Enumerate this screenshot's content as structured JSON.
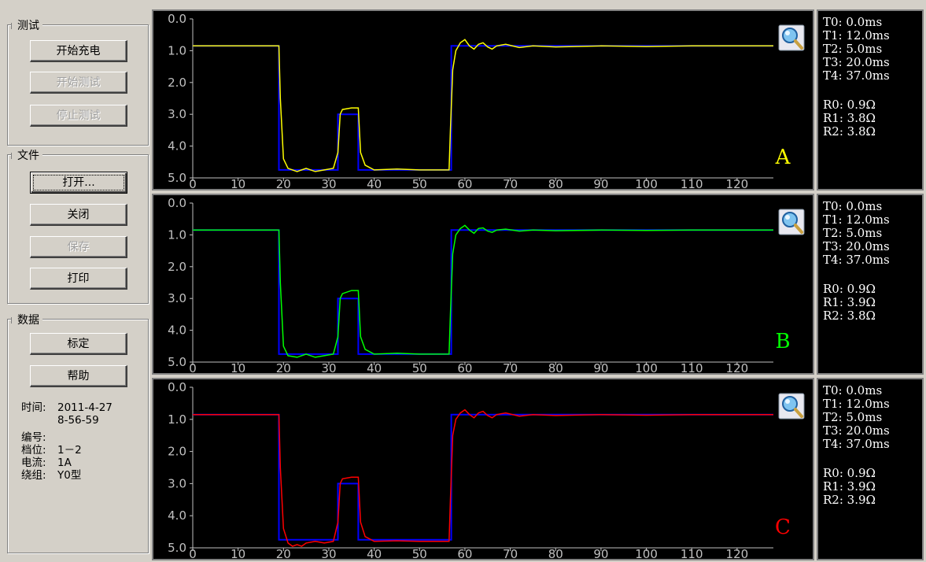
{
  "sidebar": {
    "test_group": {
      "title": "测试",
      "buttons": [
        {
          "label": "开始充电",
          "enabled": true
        },
        {
          "label": "开始测试",
          "enabled": false
        },
        {
          "label": "停止测试",
          "enabled": false
        }
      ]
    },
    "file_group": {
      "title": "文件",
      "buttons": [
        {
          "label": "打开...",
          "enabled": true
        },
        {
          "label": "关闭",
          "enabled": true
        },
        {
          "label": "保存",
          "enabled": false
        },
        {
          "label": "打印",
          "enabled": true
        }
      ]
    },
    "data_group": {
      "title": "数据",
      "buttons": [
        {
          "label": "标定",
          "enabled": true
        },
        {
          "label": "帮助",
          "enabled": true
        }
      ],
      "info": {
        "time_label": "时间:",
        "time_date": "2011-4-27",
        "time_clock": "8-56-59",
        "number_label": "编号:",
        "number_value": "",
        "tap_label": "档位:",
        "tap_value": "1－2",
        "current_label": "电流:",
        "current_value": "1A",
        "winding_label": "绕组:",
        "winding_value": "Y0型"
      }
    }
  },
  "channels": [
    {
      "id": "A",
      "label": "A",
      "color": "#ffff00",
      "params": {
        "T0": "T0: 0.0ms",
        "T1": "T1: 12.0ms",
        "T2": "T2: 5.0ms",
        "T3": "T3: 20.0ms",
        "T4": "T4: 37.0ms",
        "R0": "R0: 0.9Ω",
        "R1": "R1: 3.8Ω",
        "R2": "R2: 3.8Ω"
      }
    },
    {
      "id": "B",
      "label": "B",
      "color": "#00ff00",
      "params": {
        "T0": "T0: 0.0ms",
        "T1": "T1: 12.0ms",
        "T2": "T2: 5.0ms",
        "T3": "T3: 20.0ms",
        "T4": "T4: 37.0ms",
        "R0": "R0: 0.9Ω",
        "R1": "R1: 3.9Ω",
        "R2": "R2: 3.8Ω"
      }
    },
    {
      "id": "C",
      "label": "C",
      "color": "#ff0000",
      "params": {
        "T0": "T0: 0.0ms",
        "T1": "T1: 12.0ms",
        "T2": "T2: 5.0ms",
        "T3": "T3: 20.0ms",
        "T4": "T4: 37.0ms",
        "R0": "R0: 0.9Ω",
        "R1": "R1: 3.9Ω",
        "R2": "R2: 3.9Ω"
      }
    }
  ],
  "zoom_icon": "magnifier-icon",
  "chart_data": {
    "type": "line",
    "x_ticks": [
      "0",
      "10",
      "20",
      "30",
      "40",
      "50",
      "60",
      "70",
      "80",
      "90",
      "100",
      "110",
      "120"
    ],
    "y_ticks": [
      "0.0",
      "1.0",
      "2.0",
      "3.0",
      "4.0",
      "5.0"
    ],
    "xlim": [
      0,
      128
    ],
    "ylim": [
      0,
      5
    ],
    "y_inverted": true,
    "reference_color": "#0000ff",
    "reference": {
      "x": [
        0,
        19,
        19,
        32,
        32,
        36.5,
        36.5,
        57,
        57,
        128
      ],
      "y": [
        0.85,
        0.85,
        4.75,
        4.75,
        3.0,
        3.0,
        4.75,
        4.75,
        0.85,
        0.85
      ]
    },
    "series": [
      {
        "channel": "A",
        "x": [
          0,
          19,
          19.3,
          20,
          21,
          23,
          25,
          27,
          29,
          31,
          32,
          32.5,
          33,
          35,
          36.5,
          37,
          38,
          40,
          45,
          50,
          56.5,
          56.8,
          57.3,
          58,
          59,
          60,
          61,
          62,
          63,
          64,
          65,
          66,
          67,
          69,
          72,
          75,
          80,
          90,
          100,
          110,
          128
        ],
        "y": [
          0.85,
          0.85,
          2.5,
          4.4,
          4.7,
          4.8,
          4.7,
          4.8,
          4.75,
          4.7,
          4.2,
          3.0,
          2.85,
          2.8,
          2.8,
          4.2,
          4.6,
          4.75,
          4.72,
          4.75,
          4.75,
          3.5,
          1.6,
          1.0,
          0.75,
          0.65,
          0.85,
          0.95,
          0.8,
          0.75,
          0.88,
          0.95,
          0.85,
          0.8,
          0.9,
          0.85,
          0.88,
          0.85,
          0.87,
          0.85,
          0.85
        ]
      },
      {
        "channel": "B",
        "x": [
          0,
          19,
          19.3,
          20,
          21,
          23,
          25,
          27,
          29,
          31,
          32,
          32.5,
          33,
          35,
          36.5,
          37,
          38,
          40,
          45,
          50,
          56.5,
          56.8,
          57.3,
          58,
          59,
          60,
          61,
          62,
          63,
          64,
          65,
          66,
          67,
          69,
          72,
          75,
          80,
          90,
          100,
          110,
          128
        ],
        "y": [
          0.85,
          0.85,
          2.5,
          4.5,
          4.8,
          4.85,
          4.75,
          4.85,
          4.8,
          4.75,
          4.2,
          3.0,
          2.85,
          2.75,
          2.75,
          4.2,
          4.6,
          4.75,
          4.72,
          4.75,
          4.75,
          3.5,
          1.6,
          1.0,
          0.8,
          0.7,
          0.85,
          0.95,
          0.8,
          0.78,
          0.88,
          0.92,
          0.85,
          0.82,
          0.88,
          0.85,
          0.87,
          0.85,
          0.86,
          0.85,
          0.85
        ]
      },
      {
        "channel": "C",
        "x": [
          0,
          19,
          19.3,
          20,
          21,
          22,
          23,
          24,
          25,
          27,
          29,
          31,
          32,
          32.5,
          33,
          35,
          36.5,
          37,
          38,
          40,
          45,
          50,
          56.5,
          56.8,
          57.3,
          58,
          59,
          60,
          61,
          62,
          63,
          64,
          65,
          66,
          67,
          69,
          72,
          75,
          80,
          90,
          100,
          110,
          128
        ],
        "y": [
          0.85,
          0.85,
          2.5,
          4.4,
          4.85,
          4.95,
          4.9,
          4.95,
          4.85,
          4.8,
          4.85,
          4.8,
          4.2,
          3.0,
          2.85,
          2.8,
          2.8,
          4.2,
          4.65,
          4.8,
          4.78,
          4.8,
          4.8,
          3.5,
          1.5,
          1.0,
          0.8,
          0.7,
          0.85,
          0.95,
          0.8,
          0.75,
          0.88,
          0.95,
          0.85,
          0.8,
          0.9,
          0.85,
          0.88,
          0.85,
          0.87,
          0.85,
          0.85
        ]
      }
    ]
  }
}
